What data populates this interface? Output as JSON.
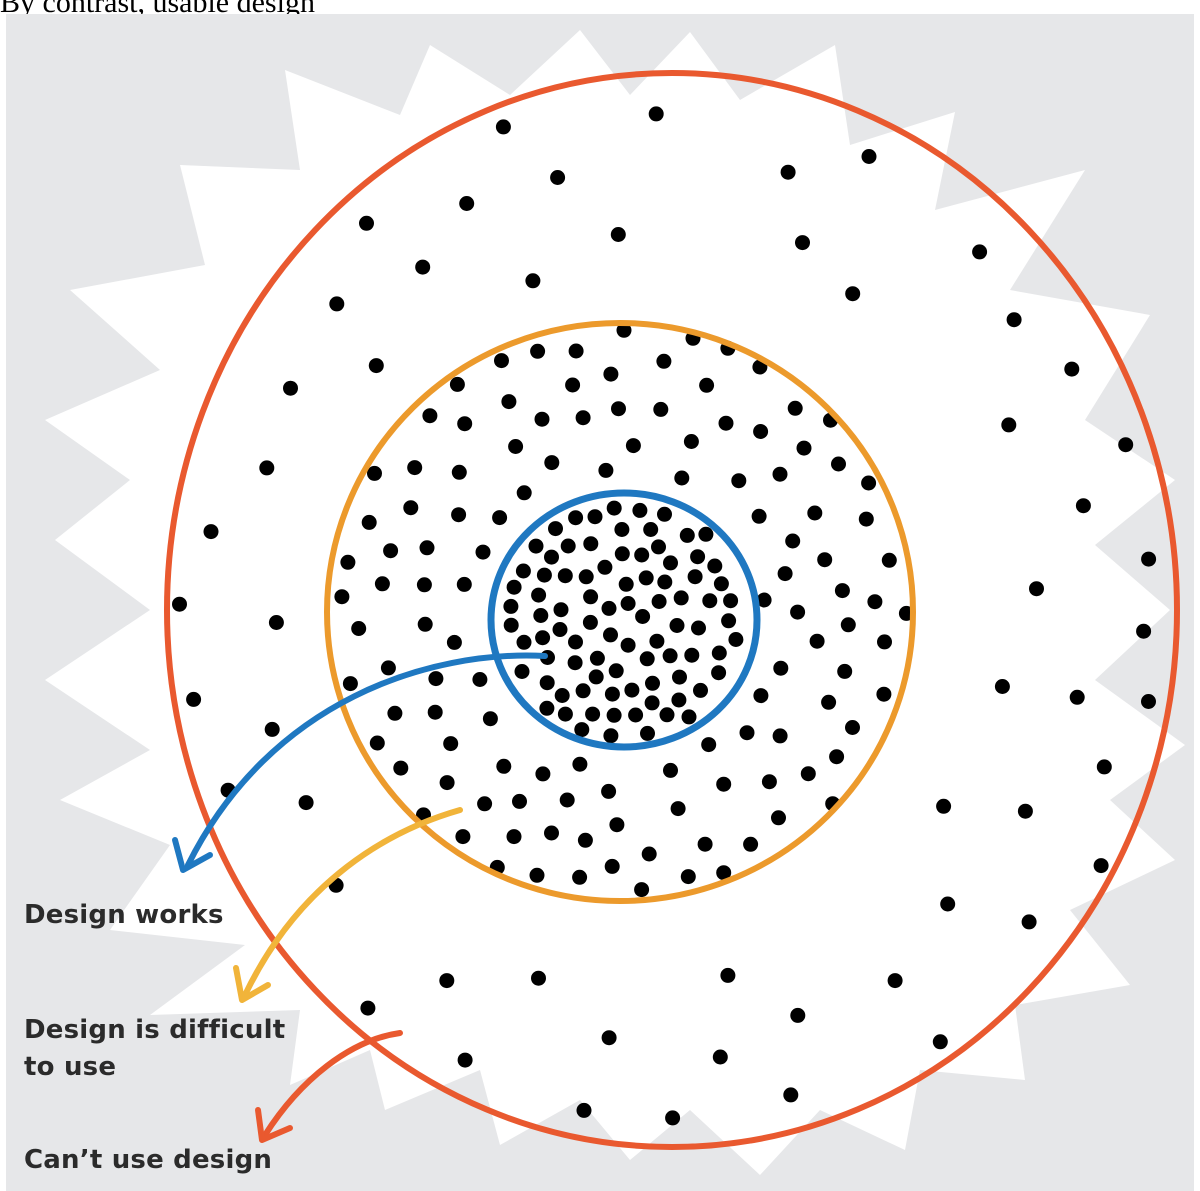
{
  "header": {
    "clipped_text": "By contrast, usable design"
  },
  "colors": {
    "panel_bg": "#e6e7e9",
    "starburst": "#ffffff",
    "outer_ring": "#e9592f",
    "middle_ring": "#ec9a2c",
    "inner_ring": "#1f78c1",
    "arrow_blue": "#1f78c1",
    "arrow_yellow": "#f1b43a",
    "arrow_red": "#e9592f",
    "dots": "#000000"
  },
  "labels": {
    "design_works": "Design works",
    "difficult_line1": "Design is difficult",
    "difficult_line2": "to use",
    "cant_use": "Can’t use design"
  }
}
